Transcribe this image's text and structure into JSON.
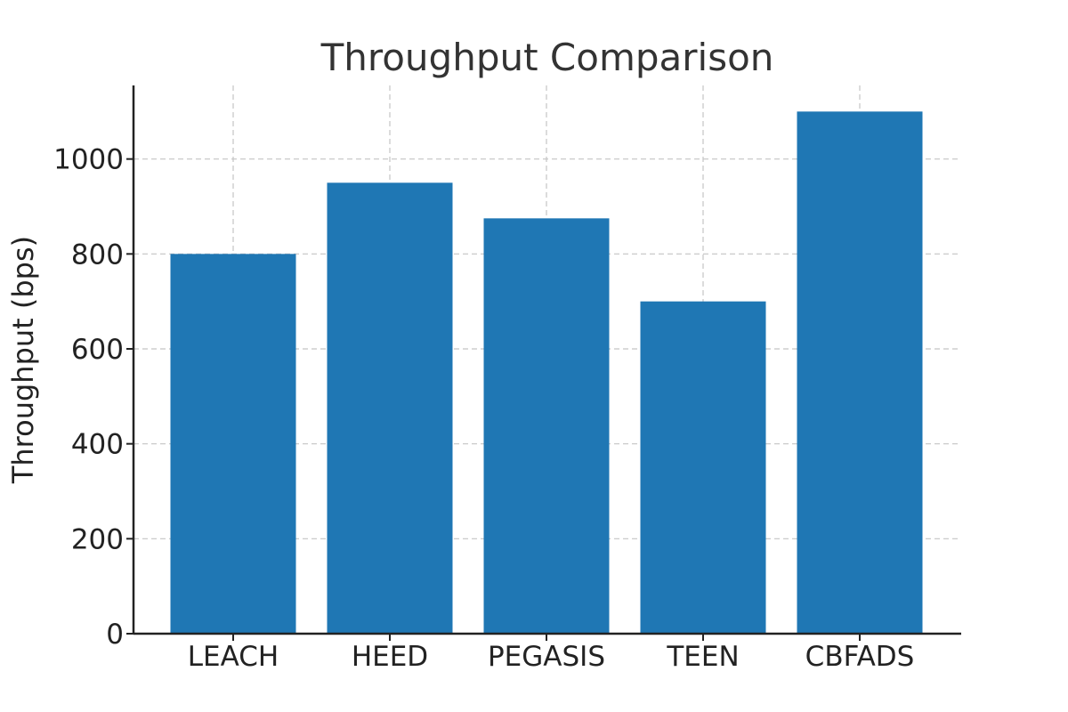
{
  "chart_data": {
    "type": "bar",
    "title": "Throughput Comparison",
    "xlabel": "",
    "ylabel": "Throughput (bps)",
    "categories": [
      "LEACH",
      "HEED",
      "PEGASIS",
      "TEEN",
      "CBFADS"
    ],
    "values": [
      800,
      950,
      875,
      700,
      1100
    ],
    "ylim": [
      0,
      1155
    ],
    "yticks": [
      0,
      200,
      400,
      600,
      800,
      1000
    ],
    "grid": true,
    "bar_color": "#1f77b4"
  }
}
